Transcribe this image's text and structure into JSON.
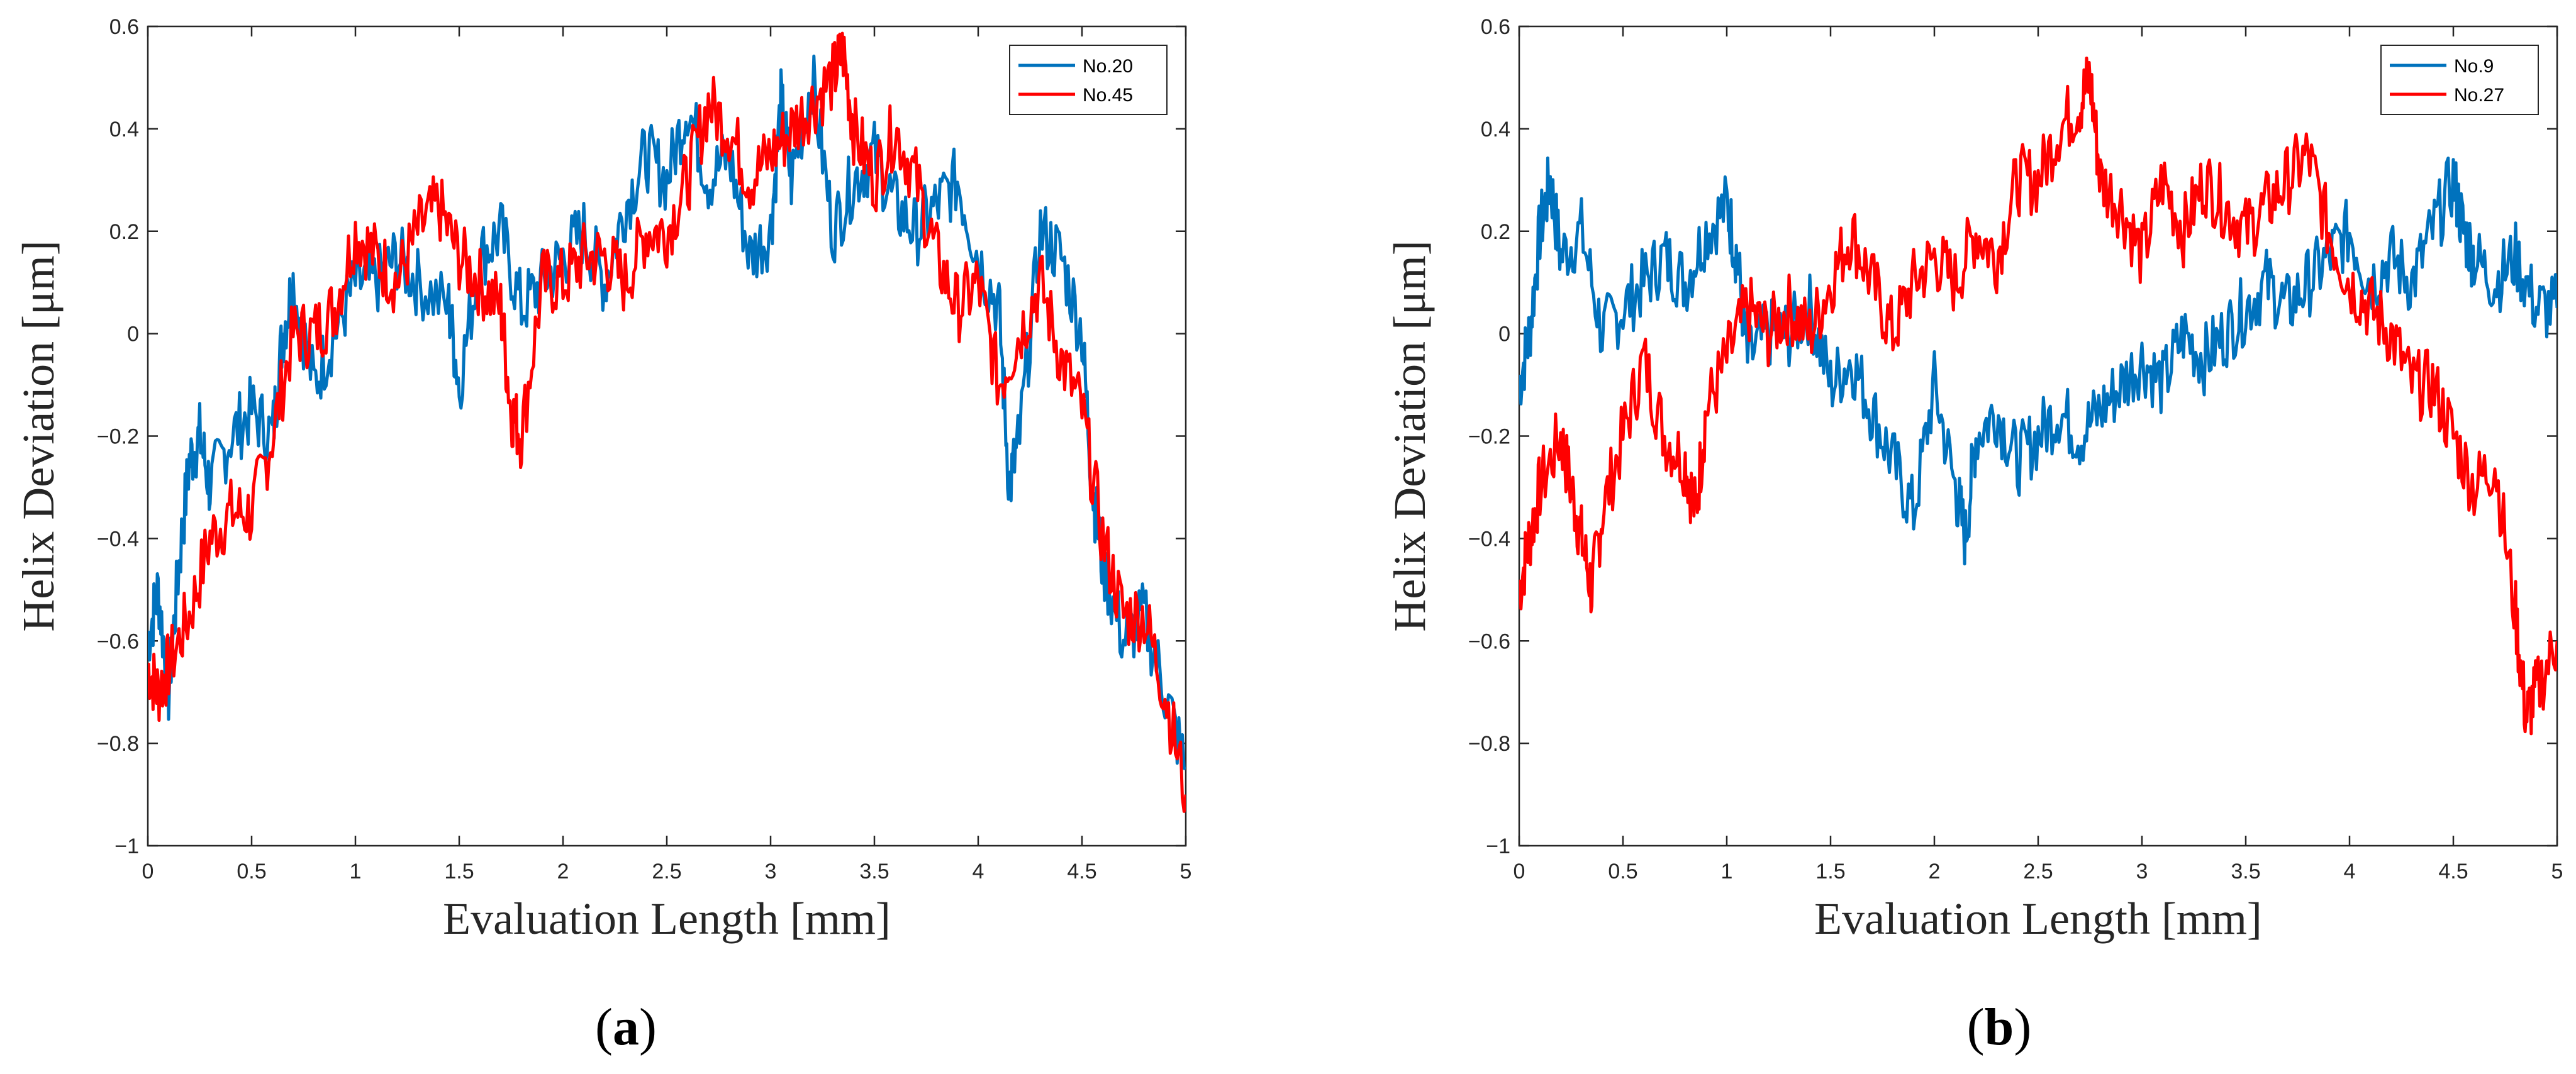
{
  "chart_data": [
    {
      "type": "line",
      "panel_label": "a",
      "xlabel": "Evaluation Length [mm]",
      "ylabel": "Helix Deviation [μm]",
      "xlim": [
        0,
        5
      ],
      "ylim": [
        -1,
        0.6
      ],
      "xticks": [
        0,
        0.5,
        1,
        1.5,
        2,
        2.5,
        3,
        3.5,
        4,
        4.5,
        5
      ],
      "xtick_labels": [
        "0",
        "0.5",
        "1",
        "1.5",
        "2",
        "2.5",
        "3",
        "3.5",
        "4",
        "4.5",
        "5"
      ],
      "yticks": [
        -1,
        -0.8,
        -0.6,
        -0.4,
        -0.2,
        0,
        0.2,
        0.4,
        0.6
      ],
      "ytick_labels": [
        "−1",
        "−0.8",
        "−0.6",
        "−0.4",
        "−0.2",
        "0",
        "0.2",
        "0.4",
        "0.6"
      ],
      "legend_position": "top-right",
      "series": [
        {
          "name": "No.20",
          "color": "#0072BD",
          "x": [
            0,
            0.05,
            0.1,
            0.15,
            0.2,
            0.25,
            0.3,
            0.4,
            0.5,
            0.6,
            0.65,
            0.7,
            0.8,
            0.9,
            1.0,
            1.1,
            1.2,
            1.3,
            1.45,
            1.5,
            1.6,
            1.7,
            1.8,
            1.9,
            2.0,
            2.1,
            2.2,
            2.3,
            2.4,
            2.5,
            2.6,
            2.7,
            2.8,
            2.9,
            3.0,
            3.05,
            3.1,
            3.2,
            3.3,
            3.4,
            3.5,
            3.6,
            3.7,
            3.8,
            3.9,
            4.0,
            4.1,
            4.15,
            4.2,
            4.3,
            4.4,
            4.5,
            4.55,
            4.6,
            4.7,
            4.8,
            4.9,
            5.0
          ],
          "y": [
            -0.6,
            -0.5,
            -0.7,
            -0.45,
            -0.25,
            -0.2,
            -0.3,
            -0.2,
            -0.15,
            -0.2,
            0.0,
            0.1,
            -0.1,
            0.0,
            0.1,
            0.1,
            0.15,
            0.1,
            0.05,
            -0.1,
            0.15,
            0.2,
            0.05,
            0.1,
            0.15,
            0.2,
            0.1,
            0.25,
            0.35,
            0.3,
            0.45,
            0.3,
            0.35,
            0.15,
            0.2,
            0.45,
            0.3,
            0.5,
            0.2,
            0.3,
            0.35,
            0.25,
            0.2,
            0.25,
            0.3,
            0.15,
            0.05,
            -0.3,
            -0.2,
            0.2,
            0.15,
            0.0,
            -0.3,
            -0.45,
            -0.6,
            -0.55,
            -0.7,
            -0.85
          ]
        },
        {
          "name": "No.45",
          "color": "#FF0000",
          "x": [
            0,
            0.05,
            0.1,
            0.2,
            0.3,
            0.4,
            0.5,
            0.6,
            0.7,
            0.8,
            0.9,
            1.0,
            1.1,
            1.2,
            1.3,
            1.4,
            1.5,
            1.6,
            1.7,
            1.75,
            1.8,
            1.9,
            2.0,
            2.1,
            2.2,
            2.3,
            2.4,
            2.5,
            2.6,
            2.7,
            2.8,
            2.9,
            3.0,
            3.1,
            3.2,
            3.3,
            3.35,
            3.4,
            3.5,
            3.6,
            3.7,
            3.8,
            3.9,
            4.0,
            4.1,
            4.2,
            4.3,
            4.4,
            4.5,
            4.6,
            4.7,
            4.8,
            4.9,
            5.0
          ],
          "y": [
            -0.65,
            -0.7,
            -0.65,
            -0.55,
            -0.4,
            -0.35,
            -0.35,
            -0.2,
            0.0,
            0.0,
            0.05,
            0.2,
            0.15,
            0.1,
            0.2,
            0.25,
            0.15,
            0.1,
            0.05,
            -0.15,
            -0.2,
            0.1,
            0.1,
            0.15,
            0.15,
            0.1,
            0.2,
            0.2,
            0.3,
            0.45,
            0.4,
            0.3,
            0.35,
            0.4,
            0.45,
            0.5,
            0.55,
            0.4,
            0.3,
            0.4,
            0.3,
            0.15,
            0.05,
            0.1,
            -0.1,
            0.0,
            0.1,
            -0.05,
            -0.15,
            -0.4,
            -0.55,
            -0.55,
            -0.7,
            -0.9
          ]
        }
      ]
    },
    {
      "type": "line",
      "panel_label": "b",
      "xlabel": "Evaluation Length [mm]",
      "ylabel": "Helix Deviation [μm]",
      "xlim": [
        0,
        5
      ],
      "ylim": [
        -1,
        0.6
      ],
      "xticks": [
        0,
        0.5,
        1,
        1.5,
        2,
        2.5,
        3,
        3.5,
        4,
        4.5,
        5
      ],
      "xtick_labels": [
        "0",
        "0.5",
        "1",
        "1.5",
        "2",
        "2.5",
        "3",
        "3.5",
        "4",
        "4.5",
        "5"
      ],
      "yticks": [
        -1,
        -0.8,
        -0.6,
        -0.4,
        -0.2,
        0,
        0.2,
        0.4,
        0.6
      ],
      "ytick_labels": [
        "−1",
        "−0.8",
        "−0.6",
        "−0.4",
        "−0.2",
        "0",
        "0.2",
        "0.4",
        "0.6"
      ],
      "legend_position": "top-right",
      "series": [
        {
          "name": "No.9",
          "color": "#0072BD",
          "x": [
            0,
            0.05,
            0.1,
            0.15,
            0.2,
            0.3,
            0.4,
            0.5,
            0.6,
            0.7,
            0.8,
            0.9,
            1.0,
            1.05,
            1.1,
            1.2,
            1.3,
            1.4,
            1.5,
            1.6,
            1.7,
            1.8,
            1.9,
            2.0,
            2.1,
            2.15,
            2.2,
            2.3,
            2.4,
            2.5,
            2.6,
            2.7,
            2.8,
            2.9,
            3.0,
            3.1,
            3.2,
            3.3,
            3.4,
            3.5,
            3.6,
            3.7,
            3.8,
            3.9,
            4.0,
            4.1,
            4.2,
            4.3,
            4.4,
            4.5,
            4.55,
            4.6,
            4.7,
            4.8,
            4.9,
            5.0
          ],
          "y": [
            -0.1,
            0.0,
            0.2,
            0.3,
            0.15,
            0.2,
            0.0,
            0.05,
            0.1,
            0.15,
            0.1,
            0.2,
            0.25,
            0.15,
            -0.05,
            0.0,
            0.0,
            0.05,
            -0.1,
            -0.05,
            -0.15,
            -0.25,
            -0.35,
            -0.1,
            -0.3,
            -0.4,
            -0.2,
            -0.15,
            -0.25,
            -0.2,
            -0.15,
            -0.2,
            -0.15,
            -0.1,
            -0.05,
            -0.1,
            0.0,
            -0.05,
            0.0,
            0.05,
            0.1,
            0.05,
            0.1,
            0.15,
            0.2,
            0.1,
            0.15,
            0.1,
            0.2,
            0.3,
            0.2,
            0.15,
            0.1,
            0.15,
            0.05,
            0.05
          ]
        },
        {
          "name": "No.27",
          "color": "#FF0000",
          "x": [
            0,
            0.05,
            0.1,
            0.2,
            0.25,
            0.3,
            0.35,
            0.4,
            0.5,
            0.6,
            0.7,
            0.8,
            0.85,
            0.9,
            1.0,
            1.1,
            1.2,
            1.3,
            1.4,
            1.5,
            1.6,
            1.7,
            1.8,
            1.9,
            2.0,
            2.1,
            2.2,
            2.3,
            2.4,
            2.5,
            2.6,
            2.7,
            2.75,
            2.8,
            2.9,
            3.0,
            3.1,
            3.2,
            3.3,
            3.4,
            3.5,
            3.6,
            3.7,
            3.8,
            3.9,
            4.0,
            4.1,
            4.2,
            4.3,
            4.4,
            4.5,
            4.6,
            4.7,
            4.8,
            4.85,
            4.9,
            5.0
          ],
          "y": [
            -0.5,
            -0.4,
            -0.3,
            -0.2,
            -0.3,
            -0.4,
            -0.5,
            -0.35,
            -0.2,
            -0.05,
            -0.2,
            -0.25,
            -0.35,
            -0.15,
            -0.05,
            0.05,
            0.0,
            0.05,
            0.0,
            0.1,
            0.2,
            0.1,
            0.0,
            0.1,
            0.15,
            0.1,
            0.2,
            0.15,
            0.3,
            0.3,
            0.4,
            0.45,
            0.5,
            0.3,
            0.25,
            0.15,
            0.3,
            0.2,
            0.3,
            0.25,
            0.2,
            0.25,
            0.3,
            0.35,
            0.2,
            0.1,
            0.05,
            0.0,
            -0.1,
            -0.1,
            -0.2,
            -0.3,
            -0.25,
            -0.55,
            -0.75,
            -0.7,
            -0.6
          ]
        }
      ]
    }
  ]
}
